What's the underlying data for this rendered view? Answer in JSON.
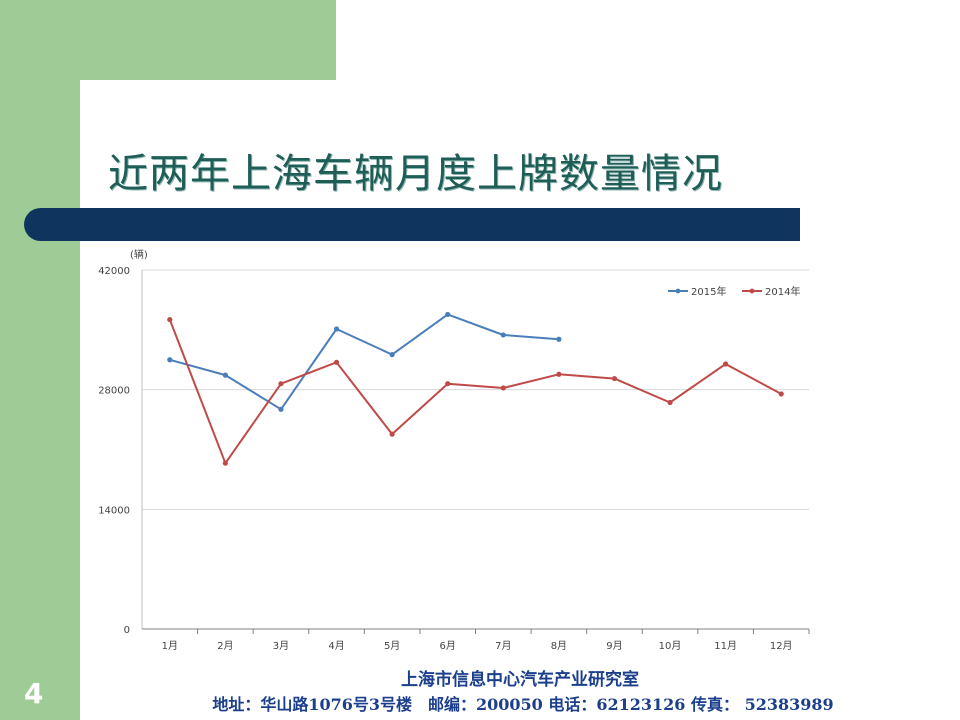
{
  "slide": {
    "title": "近两年上海车辆月度上牌数量情况",
    "page_number": "4",
    "footer_org": "上海市信息中心汽车产业研究室",
    "footer_contact": "地址：华山路1076号3号楼　邮编：200050 电话：62123126 传真： 52383989",
    "colors": {
      "green": "#9fcc96",
      "navy": "#0f355f",
      "title": "#1e5e57",
      "footer": "#1c3f8c"
    }
  },
  "chart_data": {
    "type": "line",
    "unit_label": "(辆)",
    "categories": [
      "1月",
      "2月",
      "3月",
      "4月",
      "5月",
      "6月",
      "7月",
      "8月",
      "9月",
      "10月",
      "11月",
      "12月"
    ],
    "y_ticks": [
      "0",
      "14000",
      "28000",
      "42000"
    ],
    "ylim": [
      0,
      42000
    ],
    "grid": true,
    "legend_position": "top-right",
    "series": [
      {
        "name": "2015年",
        "color": "#4a7ebb",
        "values": [
          31500,
          29700,
          25700,
          35100,
          32100,
          36800,
          34400,
          33900,
          null,
          null,
          null,
          null
        ]
      },
      {
        "name": "2014年",
        "color": "#be4b48",
        "values": [
          36200,
          19400,
          28700,
          31200,
          22800,
          28700,
          28200,
          29800,
          29300,
          26500,
          31000,
          27500
        ]
      }
    ]
  }
}
